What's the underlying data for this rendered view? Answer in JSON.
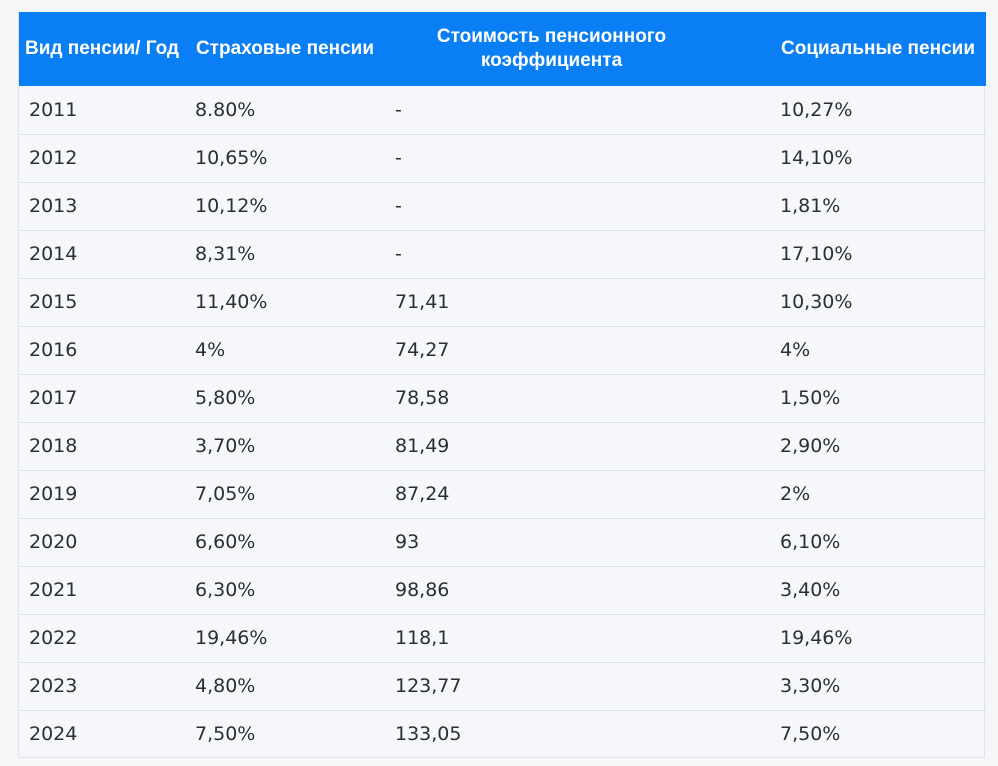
{
  "table": {
    "headers": [
      "Вид пенсии/ Год",
      "Страховые пенсии",
      "Стоимость пенсионного коэффициента",
      "Социальные пенсии"
    ],
    "rows": [
      [
        "2011",
        "8.80%",
        "-",
        "10,27%"
      ],
      [
        "2012",
        "10,65%",
        "-",
        "14,10%"
      ],
      [
        "2013",
        "10,12%",
        "-",
        "1,81%"
      ],
      [
        "2014",
        "8,31%",
        "-",
        "17,10%"
      ],
      [
        "2015",
        "11,40%",
        "71,41",
        "10,30%"
      ],
      [
        "2016",
        "4%",
        "74,27",
        "4%"
      ],
      [
        "2017",
        "5,80%",
        "78,58",
        "1,50%"
      ],
      [
        "2018",
        "3,70%",
        "81,49",
        "2,90%"
      ],
      [
        "2019",
        "7,05%",
        "87,24",
        "2%"
      ],
      [
        "2020",
        "6,60%",
        "93",
        "6,10%"
      ],
      [
        "2021",
        "6,30%",
        "98,86",
        "3,40%"
      ],
      [
        "2022",
        "19,46%",
        "118,1",
        "19,46%"
      ],
      [
        "2023",
        "4,80%",
        "123,77",
        "3,30%"
      ],
      [
        "2024",
        "7,50%",
        "133,05",
        "7,50%"
      ]
    ]
  },
  "colors": {
    "header_bg": "#0a7ff5",
    "header_text": "#ffffff",
    "body_bg": "#f5f7fa",
    "row_border": "#dde2e7",
    "cell_text": "#2b2f33"
  }
}
